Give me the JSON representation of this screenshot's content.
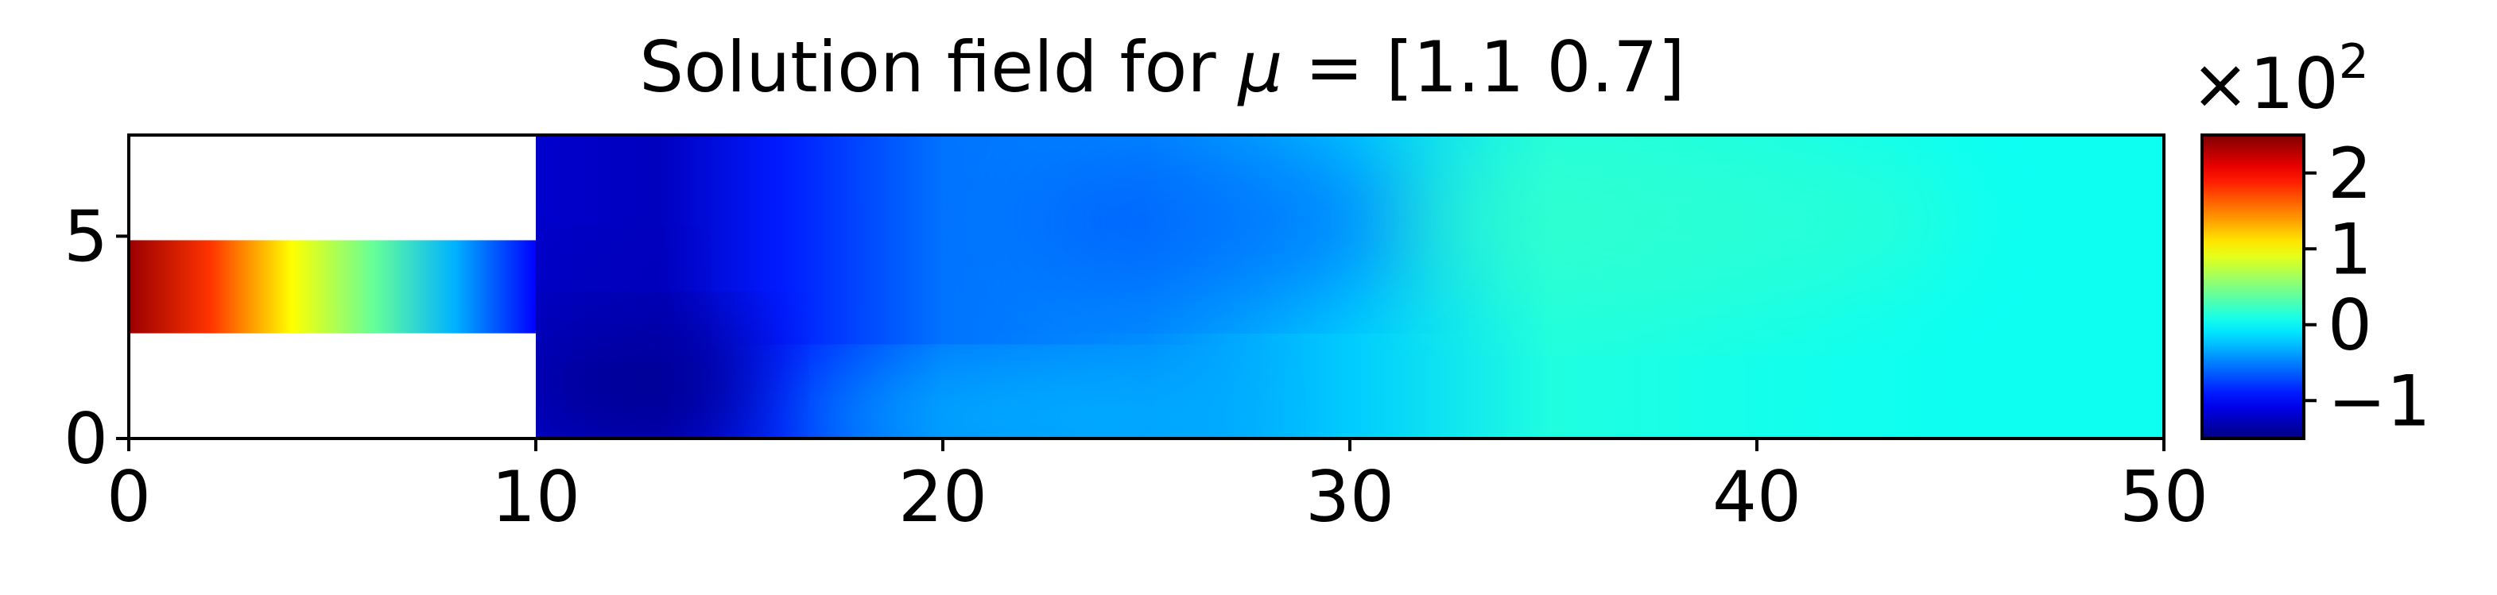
{
  "chart_data": {
    "type": "heatmap",
    "title": "Solution field for μ = [1.1 0.7]",
    "title_parts": {
      "prefix": "Solution field for ",
      "symbol": "μ",
      "suffix": " = [1.1 0.7]"
    },
    "xlabel": "",
    "ylabel": "",
    "xlim": [
      0,
      50
    ],
    "ylim": [
      0,
      7.5
    ],
    "xticks": [
      0,
      10,
      20,
      30,
      40,
      50
    ],
    "xtick_labels": [
      "0",
      "10",
      "20",
      "30",
      "40",
      "50"
    ],
    "yticks": [
      0,
      5
    ],
    "ytick_labels": [
      "0",
      "5"
    ],
    "grid": false,
    "colormap": "jet",
    "domain": {
      "inlet_channel": {
        "x": [
          0,
          10
        ],
        "y": [
          2.6,
          4.9
        ]
      },
      "main_chamber": {
        "x": [
          10,
          50
        ],
        "y": [
          0,
          7.5
        ]
      }
    },
    "field_samples_x100": [
      {
        "region": "inlet",
        "x": 0,
        "value": 2.4
      },
      {
        "region": "inlet",
        "x": 2,
        "value": 1.8
      },
      {
        "region": "inlet",
        "x": 4,
        "value": 1.0
      },
      {
        "region": "inlet",
        "x": 6,
        "value": 0.4
      },
      {
        "region": "inlet",
        "x": 8,
        "value": -0.3
      },
      {
        "region": "inlet",
        "x": 10,
        "value": -1.0
      },
      {
        "region": "chamber",
        "x": 10,
        "value": -1.2
      },
      {
        "region": "chamber",
        "x": 13,
        "value": -1.25
      },
      {
        "region": "chamber",
        "x": 16,
        "value": -0.9
      },
      {
        "region": "chamber",
        "x": 20,
        "value": -0.55
      },
      {
        "region": "chamber",
        "x": 25,
        "value": -0.45
      },
      {
        "region": "chamber",
        "x": 30,
        "value": -0.2
      },
      {
        "region": "chamber",
        "x": 35,
        "value": 0.12
      },
      {
        "region": "chamber",
        "x": 40,
        "value": 0.08
      },
      {
        "region": "chamber",
        "x": 45,
        "value": 0.05
      },
      {
        "region": "chamber",
        "x": 50,
        "value": 0.05
      }
    ],
    "colorbar": {
      "range": [
        -1.5,
        2.5
      ],
      "multiplier_label": "×10",
      "multiplier_exponent": "2",
      "ticks": [
        -1,
        0,
        1,
        2
      ],
      "tick_labels": [
        "−1",
        "0",
        "1",
        "2"
      ]
    }
  }
}
